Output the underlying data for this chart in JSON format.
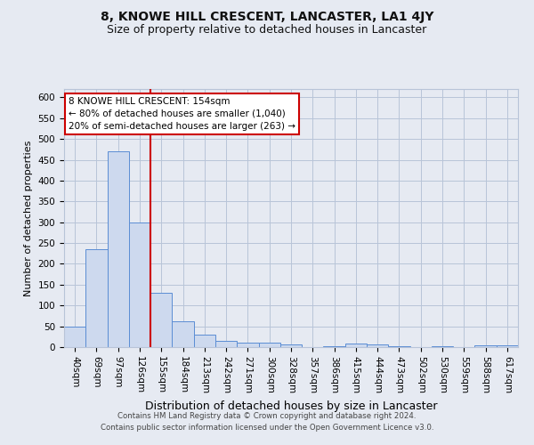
{
  "title": "8, KNOWE HILL CRESCENT, LANCASTER, LA1 4JY",
  "subtitle": "Size of property relative to detached houses in Lancaster",
  "xlabel": "Distribution of detached houses by size in Lancaster",
  "ylabel": "Number of detached properties",
  "bar_labels": [
    "40sqm",
    "69sqm",
    "97sqm",
    "126sqm",
    "155sqm",
    "184sqm",
    "213sqm",
    "242sqm",
    "271sqm",
    "300sqm",
    "328sqm",
    "357sqm",
    "386sqm",
    "415sqm",
    "444sqm",
    "473sqm",
    "502sqm",
    "530sqm",
    "559sqm",
    "588sqm",
    "617sqm"
  ],
  "bar_values": [
    50,
    235,
    470,
    300,
    130,
    62,
    30,
    16,
    10,
    10,
    6,
    0,
    2,
    8,
    6,
    2,
    0,
    2,
    0,
    5,
    5
  ],
  "bar_color": "#cdd9ee",
  "bar_edge_color": "#5b8dd4",
  "grid_color": "#b8c4d8",
  "background_color": "#e6eaf2",
  "vline_color": "#cc0000",
  "annotation_text": "8 KNOWE HILL CRESCENT: 154sqm\n← 80% of detached houses are smaller (1,040)\n20% of semi-detached houses are larger (263) →",
  "annotation_box_color": "#ffffff",
  "annotation_border_color": "#cc0000",
  "footer_line1": "Contains HM Land Registry data © Crown copyright and database right 2024.",
  "footer_line2": "Contains public sector information licensed under the Open Government Licence v3.0.",
  "ylim": [
    0,
    620
  ],
  "yticks": [
    0,
    50,
    100,
    150,
    200,
    250,
    300,
    350,
    400,
    450,
    500,
    550,
    600
  ],
  "title_fontsize": 10,
  "subtitle_fontsize": 9,
  "tick_fontsize": 7.5,
  "ylabel_fontsize": 8,
  "xlabel_fontsize": 9
}
